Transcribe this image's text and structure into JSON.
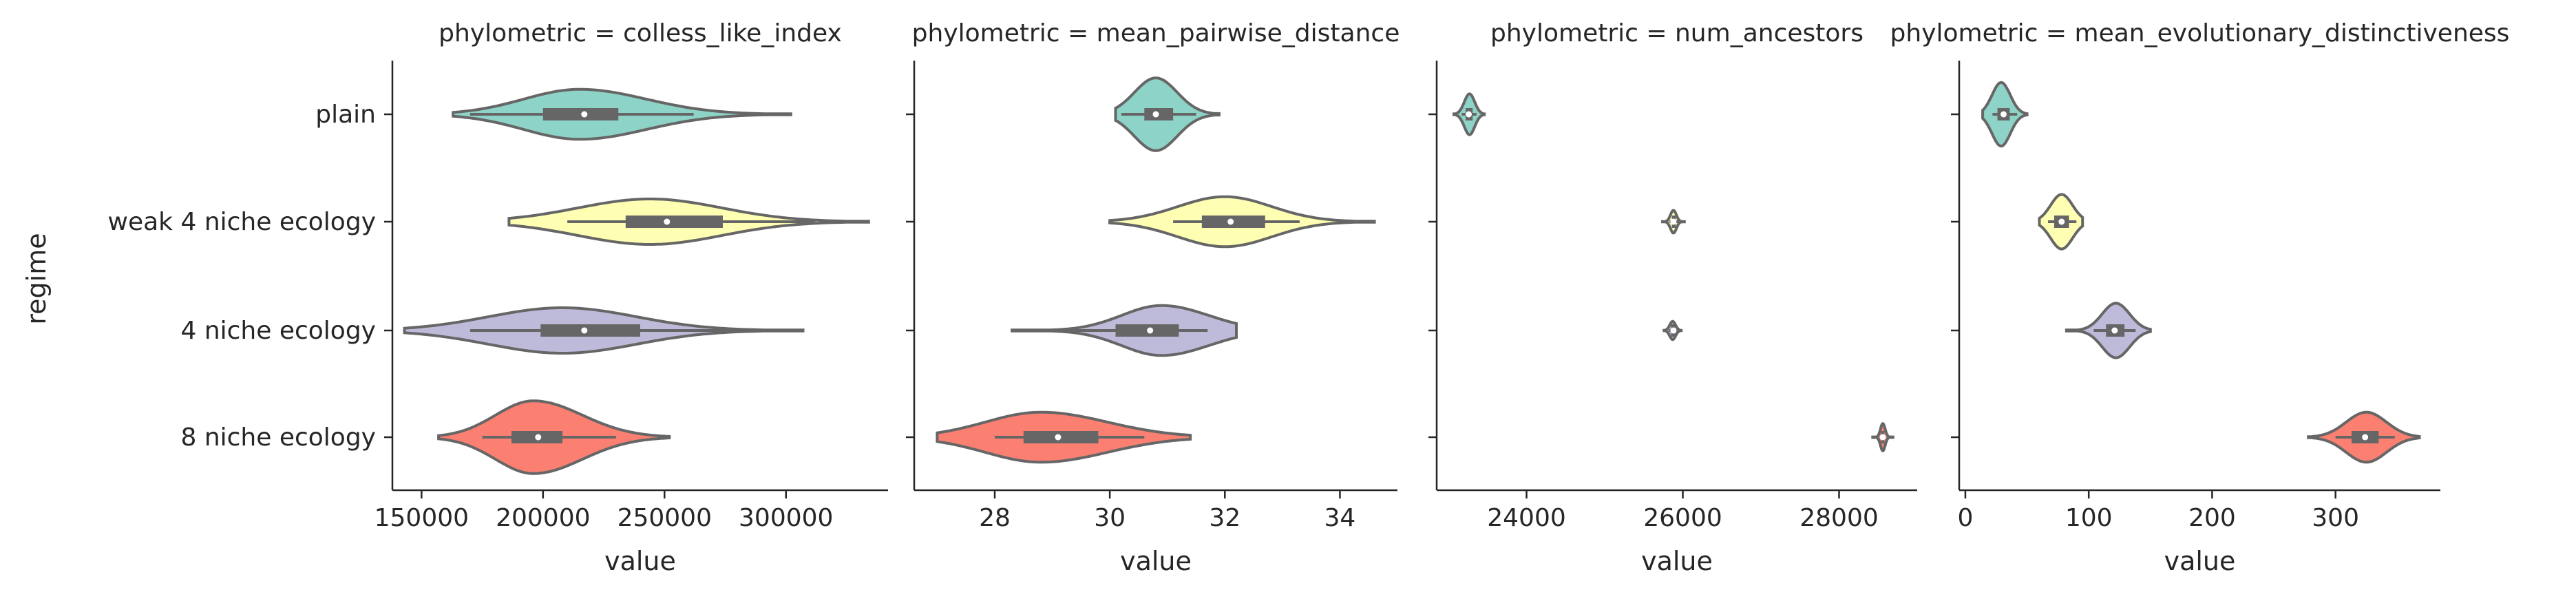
{
  "y_axis_label": "regime",
  "x_axis_label": "value",
  "regimes": [
    "plain",
    "weak 4 niche ecology",
    "4 niche ecology",
    "8 niche ecology"
  ],
  "colors": {
    "plain": "#8dd3c7",
    "weak 4 niche ecology": "#ffffb3",
    "4 niche ecology": "#bebada",
    "8 niche ecology": "#fb8072",
    "outline": "#666666",
    "box": "#666666",
    "median_dot": "#ffffff"
  },
  "chart_data": [
    {
      "type": "violin",
      "title": "phylometric = colless_like_index",
      "xlabel": "value",
      "ylabel": "regime",
      "xlim": [
        138000,
        342000
      ],
      "xticks": [
        150000,
        200000,
        250000,
        300000
      ],
      "xtick_labels": [
        "150000",
        "200000",
        "250000",
        "300000"
      ],
      "series": [
        {
          "category": "plain",
          "min": 170000,
          "q1": 200000,
          "median": 217000,
          "q3": 231000,
          "max": 262000,
          "extent": [
            163000,
            302000
          ],
          "mode": 215000,
          "width": 0.55,
          "skew": 1.2
        },
        {
          "category": "weak 4 niche ecology",
          "min": 210000,
          "q1": 234000,
          "median": 251000,
          "q3": 274000,
          "max": 312000,
          "extent": [
            186000,
            334000
          ],
          "mode": 244000,
          "width": 0.5,
          "skew": 1.0
        },
        {
          "category": "4 niche ecology",
          "min": 170000,
          "q1": 199000,
          "median": 217000,
          "q3": 240000,
          "max": 283000,
          "extent": [
            143000,
            307000
          ],
          "mode": 208000,
          "width": 0.5,
          "skew": 1.0
        },
        {
          "category": "8 niche ecology",
          "min": 175000,
          "q1": 187000,
          "median": 198000,
          "q3": 208000,
          "max": 230000,
          "extent": [
            157000,
            252000
          ],
          "mode": 196000,
          "width": 0.8,
          "skew": 1.3
        }
      ]
    },
    {
      "type": "violin",
      "title": "phylometric = mean_pairwise_distance",
      "xlabel": "value",
      "ylabel": "",
      "xlim": [
        26.6,
        35.0
      ],
      "xticks": [
        28,
        30,
        32,
        34
      ],
      "xtick_labels": [
        "28",
        "30",
        "32",
        "34"
      ],
      "series": [
        {
          "category": "plain",
          "min": 30.2,
          "q1": 30.6,
          "median": 30.8,
          "q3": 31.1,
          "max": 31.5,
          "extent": [
            30.1,
            31.9
          ],
          "mode": 30.8,
          "width": 0.8,
          "skew": 1.0
        },
        {
          "category": "weak 4 niche ecology",
          "min": 31.1,
          "q1": 31.6,
          "median": 32.1,
          "q3": 32.7,
          "max": 33.3,
          "extent": [
            30.0,
            34.6
          ],
          "mode": 32.0,
          "width": 0.55,
          "skew": 1.0
        },
        {
          "category": "4 niche ecology",
          "min": 29.2,
          "q1": 30.1,
          "median": 30.7,
          "q3": 31.2,
          "max": 31.7,
          "extent": [
            28.3,
            32.2
          ],
          "mode": 30.9,
          "width": 0.55,
          "skew": 0.85
        },
        {
          "category": "8 niche ecology",
          "min": 28.0,
          "q1": 28.5,
          "median": 29.1,
          "q3": 29.8,
          "max": 30.6,
          "extent": [
            27.0,
            31.4
          ],
          "mode": 28.8,
          "width": 0.55,
          "skew": 1.2
        }
      ]
    },
    {
      "type": "violin",
      "title": "phylometric = num_ancestors",
      "xlabel": "value",
      "ylabel": "",
      "xlim": [
        22850,
        29000
      ],
      "xticks": [
        24000,
        26000,
        28000
      ],
      "xtick_labels": [
        "24000",
        "26000",
        "28000"
      ],
      "series": [
        {
          "category": "plain",
          "min": 23170,
          "q1": 23220,
          "median": 23260,
          "q3": 23310,
          "max": 23360,
          "extent": [
            23070,
            23460
          ],
          "mode": 23270,
          "width": 0.45,
          "skew": 1.0
        },
        {
          "category": "weak 4 niche ecology",
          "min": 25830,
          "q1": 25860,
          "median": 25880,
          "q3": 25910,
          "max": 25950,
          "extent": [
            25740,
            26020
          ],
          "mode": 25880,
          "width": 0.25,
          "skew": 1.0
        },
        {
          "category": "4 niche ecology",
          "min": 25820,
          "q1": 25850,
          "median": 25880,
          "q3": 25900,
          "max": 25930,
          "extent": [
            25760,
            25980
          ],
          "mode": 25870,
          "width": 0.2,
          "skew": 1.0
        },
        {
          "category": "8 niche ecology",
          "min": 28520,
          "q1": 28540,
          "median": 28560,
          "q3": 28580,
          "max": 28600,
          "extent": [
            28430,
            28690
          ],
          "mode": 28560,
          "width": 0.3,
          "skew": 1.0
        }
      ]
    },
    {
      "type": "violin",
      "title": "phylometric = mean_evolutionary_distinctiveness",
      "xlabel": "value",
      "ylabel": "",
      "xlim": [
        -5,
        385
      ],
      "xticks": [
        0,
        100,
        200,
        300
      ],
      "xtick_labels": [
        "0",
        "100",
        "200",
        "300"
      ],
      "series": [
        {
          "category": "plain",
          "min": 22,
          "q1": 26,
          "median": 31,
          "q3": 36,
          "max": 42,
          "extent": [
            14,
            50
          ],
          "mode": 29,
          "width": 0.7,
          "skew": 1.0
        },
        {
          "category": "weak 4 niche ecology",
          "min": 67,
          "q1": 72,
          "median": 78,
          "q3": 84,
          "max": 90,
          "extent": [
            60,
            95
          ],
          "mode": 78,
          "width": 0.6,
          "skew": 1.0
        },
        {
          "category": "4 niche ecology",
          "min": 104,
          "q1": 114,
          "median": 121,
          "q3": 129,
          "max": 138,
          "extent": [
            82,
            150
          ],
          "mode": 122,
          "width": 0.6,
          "skew": 1.0
        },
        {
          "category": "8 niche ecology",
          "min": 300,
          "q1": 313,
          "median": 324,
          "q3": 335,
          "max": 348,
          "extent": [
            278,
            368
          ],
          "mode": 325,
          "width": 0.55,
          "skew": 1.0
        }
      ]
    }
  ]
}
